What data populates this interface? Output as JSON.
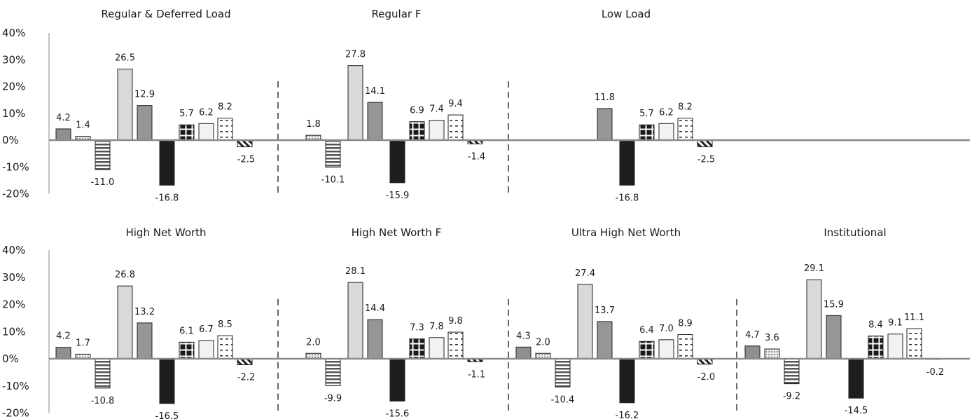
{
  "chart_data": {
    "type": "bar",
    "y_axis": {
      "ticks": [
        "40%",
        "30%",
        "20%",
        "10%",
        "0%",
        "-10%",
        "-20%"
      ],
      "ylim": [
        -20,
        40
      ],
      "unit": "%"
    },
    "rows": [
      {
        "panels": [
          {
            "title": "Regular & Deferred Load",
            "values": [
              4.2,
              1.4,
              -11.0,
              26.5,
              12.9,
              -16.8,
              5.7,
              6.2,
              8.2,
              -2.5
            ],
            "labels": [
              "4.2",
              "1.4",
              "-11.0",
              "26.5",
              "12.9",
              "-16.8",
              "5.7",
              "6.2",
              "8.2",
              "-2.5"
            ]
          },
          {
            "title": "Regular F",
            "values": [
              null,
              1.8,
              -10.1,
              27.8,
              14.1,
              -15.9,
              6.9,
              7.4,
              9.4,
              -1.4
            ],
            "labels": [
              "",
              "1.8",
              "-10.1",
              "27.8",
              "14.1",
              "-15.9",
              "6.9",
              "7.4",
              "9.4",
              "-1.4"
            ]
          },
          {
            "title": "Low Load",
            "values": [
              null,
              null,
              null,
              null,
              11.8,
              -16.8,
              5.7,
              6.2,
              8.2,
              -2.5
            ],
            "labels": [
              "",
              "",
              "",
              "",
              "11.8",
              "-16.8",
              "5.7",
              "6.2",
              "8.2",
              "-2.5"
            ]
          },
          {
            "title": "",
            "values": [
              null,
              null,
              null,
              null,
              null,
              null,
              null,
              null,
              null,
              null
            ],
            "labels": [
              "",
              "",
              "",
              "",
              "",
              "",
              "",
              "",
              "",
              ""
            ]
          }
        ]
      },
      {
        "panels": [
          {
            "title": "High Net Worth",
            "values": [
              4.2,
              1.7,
              -10.8,
              26.8,
              13.2,
              -16.5,
              6.1,
              6.7,
              8.5,
              -2.2
            ],
            "labels": [
              "4.2",
              "1.7",
              "-10.8",
              "26.8",
              "13.2",
              "-16.5",
              "6.1",
              "6.7",
              "8.5",
              "-2.2"
            ]
          },
          {
            "title": "High Net Worth F",
            "values": [
              null,
              2.0,
              -9.9,
              28.1,
              14.4,
              -15.6,
              7.3,
              7.8,
              9.8,
              -1.1
            ],
            "labels": [
              "",
              "2.0",
              "-9.9",
              "28.1",
              "14.4",
              "-15.6",
              "7.3",
              "7.8",
              "9.8",
              "-1.1"
            ]
          },
          {
            "title": "Ultra High Net Worth",
            "values": [
              4.3,
              2.0,
              -10.4,
              27.4,
              13.7,
              -16.2,
              6.4,
              7.0,
              8.9,
              -2.0
            ],
            "labels": [
              "4.3",
              "2.0",
              "-10.4",
              "27.4",
              "13.7",
              "-16.2",
              "6.4",
              "7.0",
              "8.9",
              "-2.0"
            ]
          },
          {
            "title": "Institutional",
            "values": [
              4.7,
              3.6,
              -9.2,
              29.1,
              15.9,
              -14.5,
              8.4,
              9.1,
              11.1,
              -0.2
            ],
            "labels": [
              "4.7",
              "3.6",
              "-9.2",
              "29.1",
              "15.9",
              "-14.5",
              "8.4",
              "9.1",
              "11.1",
              "-0.2"
            ]
          }
        ]
      }
    ],
    "grid": false,
    "legend": "none"
  }
}
